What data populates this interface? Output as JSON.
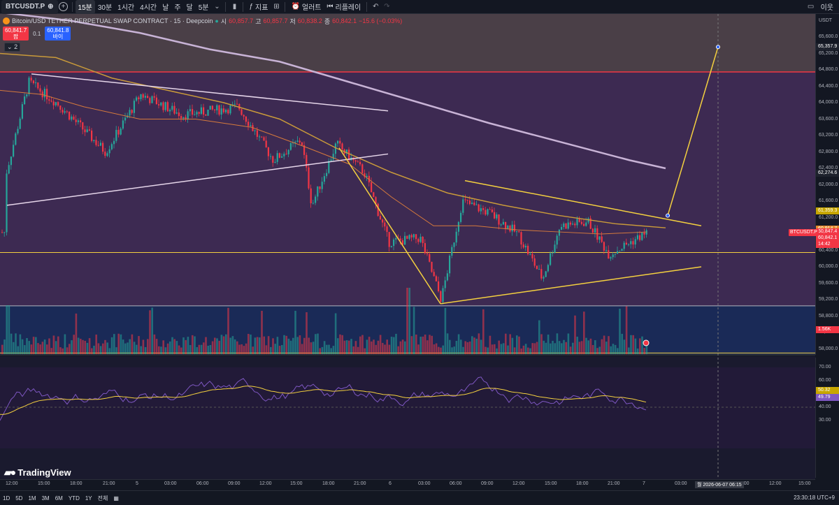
{
  "toolbar": {
    "symbol": "BTCUSDT.P",
    "intervals": [
      "15분",
      "30분",
      "1시간",
      "4시간",
      "날",
      "주",
      "달",
      "5분"
    ],
    "active_interval": "15분",
    "indicators_label": "지표",
    "alert_label": "얼러트",
    "replay_label": "리플레이",
    "right_label": "이웃"
  },
  "legend": {
    "title": "Bitcoin/USD TETHER PERPETUAL SWAP CONTRACT · 15 · Deepcoin",
    "o_label": "시",
    "o": "60,857.7",
    "h_label": "고",
    "h": "60,857.7",
    "l_label": "저",
    "l": "60,838.2",
    "c_label": "종",
    "c": "60,842.1",
    "change": "−15.6 (−0.03%)",
    "bid": "60,841.7",
    "bid_label": "팜",
    "spread": "0.1",
    "ask": "60,841.8",
    "ask_label": "바이",
    "collapse_count": "2"
  },
  "price_axis": {
    "currency": "USDT",
    "ticks": [
      "65,600.0",
      "65,200.0",
      "64,800.0",
      "64,400.0",
      "64,000.0",
      "63,600.0",
      "63,200.0",
      "62,800.0",
      "62,400.0",
      "62,000.0",
      "61,600.0",
      "61,200.0",
      "60,800.0",
      "60,400.0",
      "60,000.0",
      "59,600.0",
      "59,200.0",
      "58,800.0",
      "58,400.0",
      "58,000.0",
      "57,600.0",
      "57,200.0"
    ],
    "tags": [
      {
        "value": "65,357.9",
        "color": "#1e222d"
      },
      {
        "value": "62,274.6",
        "color": "#1e222d"
      },
      {
        "value": "61,359.3",
        "color": "#c7a600"
      },
      {
        "value": "60,914.7",
        "color": "#e5892b"
      },
      {
        "value": "60,847.4",
        "color": "#f23645"
      },
      {
        "value": "60,842.1",
        "color": "#f23645"
      },
      {
        "value": "14:42",
        "color": "#f23645"
      }
    ],
    "symbol_badge": "BTCUSDT.P",
    "volume_tag": "1.56K"
  },
  "rsi_axis": {
    "ticks": [
      "70.00",
      "60.00",
      "50.00",
      "40.00",
      "30.00"
    ],
    "rsi_value": "50.32",
    "rsi_ma_value": "49.79"
  },
  "time_axis": {
    "ticks": [
      "12:00",
      "15:00",
      "18:00",
      "21:00",
      "5",
      "03:00",
      "06:00",
      "09:00",
      "12:00",
      "15:00",
      "18:00",
      "21:00",
      "6",
      "03:00",
      "06:00",
      "09:00",
      "12:00",
      "15:00",
      "18:00",
      "21:00",
      "7",
      "03:00",
      "09:00",
      "12:00",
      "15:00"
    ],
    "cursor_label": "월 2026-06-07   06:15"
  },
  "bottom": {
    "ranges": [
      "1D",
      "5D",
      "1M",
      "3M",
      "6M",
      "YTD",
      "1Y",
      "전체"
    ],
    "clock": "23:30:18 UTC+9",
    "logo_text": "TradingView"
  },
  "colors": {
    "bg": "#131722",
    "upper_zone": "#3d2a52",
    "top_zone": "#4a3f47",
    "lower_zone": "#1a2a57",
    "up": "#26a69a",
    "down": "#f23645",
    "yellow": "#f4d03f",
    "rsi": "#7e57c2"
  },
  "icons": [
    "plus-icon",
    "candles-icon",
    "indicators-icon",
    "alert-icon",
    "replay-icon",
    "undo-icon",
    "redo-icon",
    "settings-icon",
    "layout-icon",
    "bitcoin-icon",
    "tv-logo-icon",
    "calendar-icon"
  ]
}
